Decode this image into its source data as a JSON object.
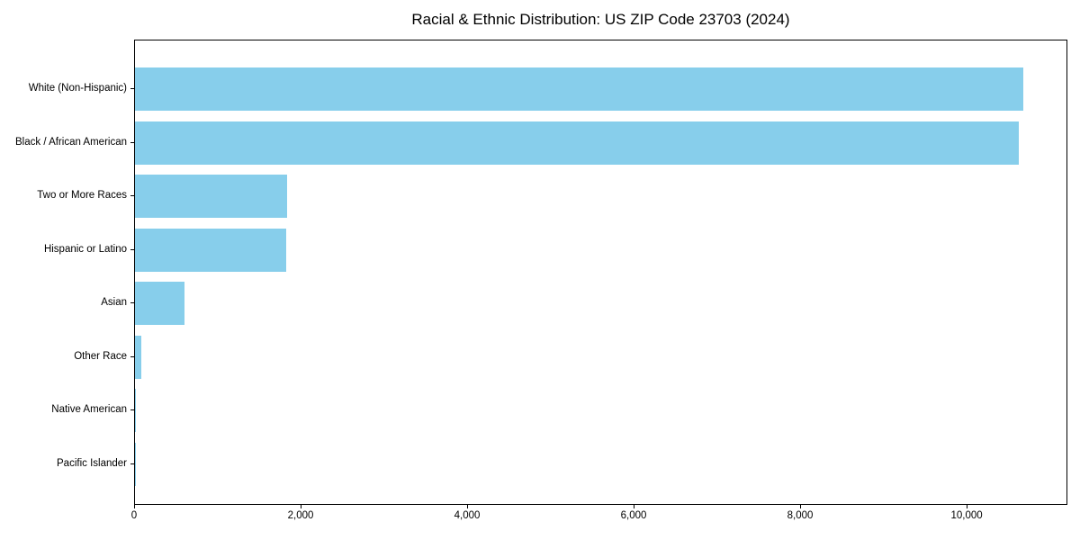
{
  "chart_data": {
    "type": "bar",
    "orientation": "horizontal",
    "title": "Racial & Ethnic Distribution: US ZIP Code 23703 (2024)",
    "categories": [
      "White (Non-Hispanic)",
      "Black / African American",
      "Two or More Races",
      "Hispanic or Latino",
      "Asian",
      "Other Race",
      "Native American",
      "Pacific Islander"
    ],
    "values": [
      10670,
      10615,
      1827,
      1816,
      595,
      76,
      12,
      3
    ],
    "xlabel": "",
    "ylabel": "",
    "xlim": [
      0,
      11210
    ],
    "x_ticks": [
      0,
      2000,
      4000,
      6000,
      8000,
      10000
    ],
    "x_tick_labels": [
      "0",
      "2,000",
      "4,000",
      "6,000",
      "8,000",
      "10,000"
    ],
    "bar_color": "#87CEEB",
    "axis_color": "#000000",
    "background_color": "#ffffff",
    "grid": false,
    "legend": null
  }
}
